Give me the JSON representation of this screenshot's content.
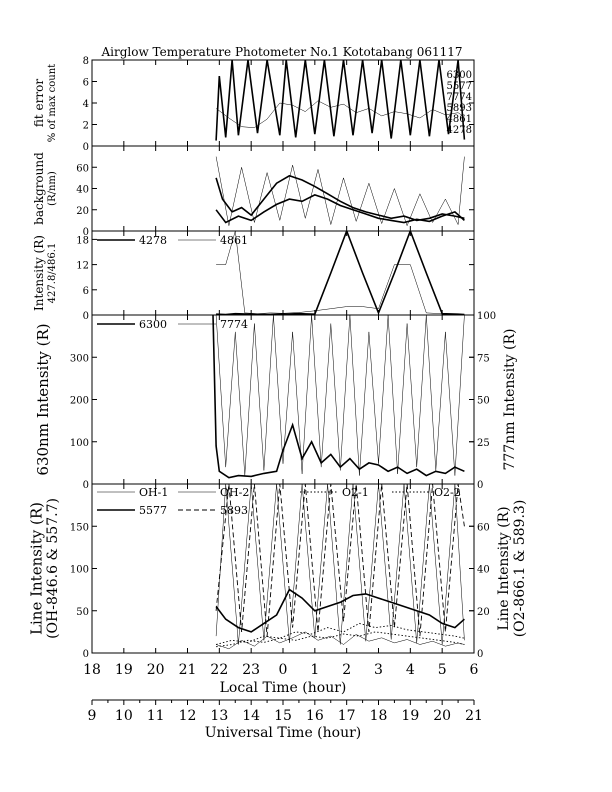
{
  "chart_data": {
    "type": "line",
    "title": "Airglow Temperature Photometer No.1  Kototabang 061117",
    "time_axes": [
      {
        "label": "Local Time (hour)",
        "ticks": [
          "18",
          "19",
          "20",
          "21",
          "22",
          "23",
          "0",
          "1",
          "2",
          "3",
          "4",
          "5",
          "6"
        ],
        "range_hours": [
          18,
          30
        ]
      },
      {
        "label": "Universal Time (hour)",
        "ticks": [
          "9",
          "10",
          "11",
          "12",
          "13",
          "14",
          "15",
          "16",
          "17",
          "18",
          "19",
          "20",
          "21"
        ],
        "range_hours": [
          9,
          21
        ]
      }
    ],
    "panels": [
      {
        "id": "fit-error",
        "ylabel": [
          "fit error",
          "% of max count"
        ],
        "ylim": [
          0,
          8
        ],
        "yticks": [
          "0",
          "2",
          "4",
          "6",
          "8"
        ],
        "side_labels": [
          "6300",
          "5577",
          "7774",
          "5893",
          "4861",
          "4278"
        ],
        "series": [
          {
            "name": "fit error (a)",
            "style": "thick",
            "x": [
              21.9,
              22.0,
              22.2,
              22.4,
              22.6,
              22.9,
              23.2,
              23.5,
              23.9,
              24.1,
              24.4,
              24.7,
              25.0,
              25.3,
              25.6,
              25.9,
              26.2,
              26.5,
              26.8,
              27.1,
              27.4,
              27.7,
              28.0,
              28.3,
              28.6,
              28.9,
              29.2,
              29.5,
              29.7
            ],
            "y": [
              0.5,
              6.5,
              0.8,
              8,
              1.0,
              8,
              1.2,
              8,
              1.0,
              8,
              0.8,
              8,
              1.1,
              8,
              0.9,
              8,
              1.0,
              8,
              1.2,
              8,
              0.7,
              8,
              1.0,
              8,
              0.9,
              8,
              1.1,
              8,
              0.6
            ]
          },
          {
            "name": "fit error (b)",
            "style": "thin",
            "x": [
              21.9,
              22.3,
              22.7,
              23.1,
              23.5,
              23.9,
              24.3,
              24.7,
              25.1,
              25.5,
              25.9,
              26.3,
              26.7,
              27.1,
              27.5,
              27.9,
              28.3,
              28.7,
              29.1,
              29.5,
              29.7
            ],
            "y": [
              3.5,
              2.6,
              1.8,
              1.7,
              2.5,
              4.0,
              3.8,
              3.2,
              4.2,
              3.6,
              3.9,
              3.1,
              3.5,
              2.8,
              3.2,
              3.0,
              2.6,
              3.4,
              2.9,
              3.1,
              2.7
            ]
          }
        ]
      },
      {
        "id": "background",
        "ylabel": [
          "background",
          "(R/nm)"
        ],
        "ylim": [
          0,
          80
        ],
        "yticks": [
          "0",
          "20",
          "40",
          "60"
        ],
        "series": [
          {
            "name": "background (a)",
            "style": "thick",
            "x": [
              21.9,
              22.1,
              22.4,
              22.7,
              23.0,
              23.4,
              23.8,
              24.2,
              24.6,
              25.0,
              25.4,
              25.8,
              26.2,
              26.6,
              27.0,
              27.4,
              27.8,
              28.2,
              28.6,
              29.0,
              29.4,
              29.7
            ],
            "y": [
              50,
              30,
              18,
              22,
              15,
              30,
              45,
              52,
              48,
              42,
              35,
              28,
              22,
              18,
              15,
              12,
              14,
              10,
              12,
              16,
              14,
              12
            ]
          },
          {
            "name": "background (b)",
            "style": "thick",
            "x": [
              21.9,
              22.2,
              22.6,
              23.0,
              23.4,
              23.8,
              24.2,
              24.6,
              25.0,
              25.4,
              25.8,
              26.2,
              26.6,
              27.0,
              27.4,
              27.8,
              28.2,
              28.6,
              29.0,
              29.4,
              29.7
            ],
            "y": [
              20,
              8,
              14,
              10,
              18,
              25,
              30,
              28,
              34,
              30,
              24,
              20,
              16,
              12,
              10,
              8,
              11,
              9,
              14,
              18,
              10
            ]
          },
          {
            "name": "background (c)",
            "style": "thin",
            "x": [
              21.9,
              22.3,
              22.7,
              23.1,
              23.5,
              23.9,
              24.3,
              24.7,
              25.1,
              25.5,
              25.9,
              26.3,
              26.7,
              27.1,
              27.5,
              27.9,
              28.3,
              28.7,
              29.1,
              29.5,
              29.7
            ],
            "y": [
              70,
              5,
              60,
              8,
              55,
              10,
              62,
              12,
              58,
              6,
              50,
              9,
              45,
              7,
              40,
              5,
              35,
              8,
              30,
              6,
              70
            ]
          }
        ]
      },
      {
        "id": "intensity-4278-4861",
        "ylabel": [
          "Intensity (R)",
          "427.8/486.1"
        ],
        "ylim": [
          0,
          20
        ],
        "yticks": [
          "0",
          "6",
          "12",
          "18"
        ],
        "legend": [
          "4278",
          "4861"
        ],
        "series": [
          {
            "name": "4278",
            "style": "thick",
            "x": [
              21.9,
              22.2,
              22.5,
              23.0,
              23.5,
              24.0,
              24.5,
              25.0,
              25.5,
              26.0,
              26.5,
              27.0,
              27.5,
              28.0,
              28.5,
              29.0,
              29.5,
              29.7
            ],
            "y": [
              0.2,
              0.1,
              0.3,
              0.2,
              0.1,
              0.2,
              0.3,
              0.2,
              10,
              20,
              10,
              0.5,
              10,
              20,
              10,
              0.3,
              0.2,
              0.1
            ]
          },
          {
            "name": "4861",
            "style": "thin",
            "x": [
              21.9,
              22.2,
              22.5,
              22.8,
              23.2,
              23.6,
              24.0,
              24.5,
              25.0,
              25.5,
              26.0,
              26.5,
              27.0,
              27.5,
              28.0,
              28.5,
              29.0,
              29.5,
              29.7
            ],
            "y": [
              12,
              12,
              20,
              0.5,
              0.3,
              0.5,
              0.4,
              0.6,
              1.0,
              1.5,
              2.0,
              2.0,
              1.5,
              12,
              12,
              0.5,
              0.3,
              0.2,
              0.1
            ]
          }
        ]
      },
      {
        "id": "intensity-6300-7774",
        "ylabel_left": "630nm Intensity (R)",
        "ylabel_right": "777nm Intensity (R)",
        "ylim_left": [
          0,
          400
        ],
        "ylim_right": [
          0,
          100
        ],
        "yticks_left": [
          "0",
          "100",
          "200",
          "300"
        ],
        "yticks_right": [
          "0",
          "25",
          "50",
          "75",
          "100"
        ],
        "legend": [
          "6300",
          "7774"
        ],
        "series": [
          {
            "name": "6300",
            "style": "thick",
            "axis": "left",
            "x": [
              21.8,
              21.9,
              22.0,
              22.3,
              22.6,
              23.0,
              23.4,
              23.8,
              24.0,
              24.3,
              24.6,
              24.9,
              25.2,
              25.5,
              25.8,
              26.1,
              26.4,
              26.7,
              27.0,
              27.3,
              27.6,
              27.9,
              28.2,
              28.5,
              28.8,
              29.1,
              29.4,
              29.7
            ],
            "y": [
              400,
              90,
              30,
              15,
              20,
              18,
              25,
              30,
              80,
              140,
              60,
              100,
              50,
              70,
              40,
              60,
              35,
              50,
              45,
              30,
              40,
              25,
              35,
              20,
              30,
              25,
              40,
              30
            ]
          },
          {
            "name": "7774",
            "style": "thin",
            "axis": "right",
            "x": [
              21.9,
              22.2,
              22.5,
              22.8,
              23.1,
              23.4,
              23.7,
              24.0,
              24.3,
              24.6,
              24.9,
              25.2,
              25.5,
              25.8,
              26.1,
              26.4,
              26.7,
              27.0,
              27.3,
              27.6,
              27.9,
              28.2,
              28.5,
              28.8,
              29.1,
              29.4,
              29.7
            ],
            "y": [
              100,
              10,
              90,
              5,
              95,
              8,
              100,
              12,
              90,
              6,
              100,
              10,
              95,
              8,
              100,
              5,
              90,
              12,
              100,
              6,
              95,
              10,
              100,
              8,
              90,
              5,
              100
            ]
          }
        ]
      },
      {
        "id": "line-intensity",
        "ylabel_left": [
          "Line Intensity (R)",
          "(OH-846.6 & 557.7)"
        ],
        "ylabel_right": [
          "Line Intensity (R)",
          "(O2-866.1 & 589.3)"
        ],
        "ylim_left": [
          0,
          200
        ],
        "ylim_right": [
          0,
          80
        ],
        "yticks_left": [
          "0",
          "50",
          "100",
          "150"
        ],
        "yticks_right": [
          "0",
          "20",
          "40",
          "60"
        ],
        "legend": [
          "OH-1",
          "OH-2",
          "O2-1",
          "O2-2",
          "5577",
          "5893"
        ],
        "series": [
          {
            "name": "OH-1",
            "style": "thin",
            "axis": "left",
            "x": [
              21.9,
              22.2,
              22.6,
              23.0,
              23.4,
              23.8,
              24.2,
              24.6,
              25.0,
              25.4,
              25.8,
              26.2,
              26.6,
              27.0,
              27.4,
              27.8,
              28.2,
              28.6,
              29.0,
              29.4,
              29.7
            ],
            "y": [
              20,
              200,
              10,
              200,
              15,
              200,
              12,
              200,
              18,
              200,
              10,
              200,
              14,
              200,
              16,
              200,
              12,
              200,
              10,
              200,
              15
            ]
          },
          {
            "name": "OH-2",
            "style": "thin",
            "axis": "left",
            "x": [
              21.9,
              22.3,
              22.7,
              23.1,
              23.5,
              23.9,
              24.3,
              24.7,
              25.1,
              25.5,
              25.9,
              26.3,
              26.7,
              27.1,
              27.5,
              27.9,
              28.3,
              28.7,
              29.1,
              29.5,
              29.7
            ],
            "y": [
              10,
              5,
              15,
              8,
              20,
              12,
              18,
              25,
              15,
              20,
              10,
              22,
              14,
              18,
              12,
              16,
              10,
              14,
              8,
              12,
              10
            ]
          },
          {
            "name": "O2-1",
            "style": "dotted",
            "axis": "right",
            "x": [
              21.9,
              22.4,
              22.9,
              23.4,
              23.9,
              24.4,
              24.9,
              25.4,
              25.9,
              26.4,
              26.9,
              27.4,
              27.9,
              28.4,
              28.9,
              29.4,
              29.7
            ],
            "y": [
              4,
              6,
              5,
              8,
              7,
              10,
              9,
              12,
              10,
              14,
              12,
              13,
              11,
              10,
              9,
              8,
              7
            ]
          },
          {
            "name": "O2-2",
            "style": "dotted",
            "axis": "right",
            "x": [
              21.9,
              22.4,
              22.9,
              23.4,
              23.9,
              24.4,
              24.9,
              25.4,
              25.9,
              26.4,
              26.9,
              27.4,
              27.9,
              28.4,
              28.9,
              29.4,
              29.7
            ],
            "y": [
              3,
              4,
              6,
              5,
              7,
              6,
              8,
              7,
              9,
              8,
              10,
              9,
              8,
              7,
              6,
              5,
              4
            ]
          },
          {
            "name": "5577",
            "style": "thick",
            "axis": "left",
            "x": [
              21.9,
              22.2,
              22.6,
              23.0,
              23.4,
              23.8,
              24.2,
              24.6,
              25.0,
              25.4,
              25.8,
              26.2,
              26.6,
              27.0,
              27.4,
              27.8,
              28.2,
              28.6,
              29.0,
              29.4,
              29.7
            ],
            "y": [
              55,
              40,
              30,
              25,
              35,
              45,
              75,
              65,
              50,
              55,
              60,
              68,
              70,
              65,
              60,
              55,
              50,
              45,
              35,
              30,
              40
            ]
          },
          {
            "name": "5893",
            "style": "dashed",
            "axis": "right",
            "x": [
              21.9,
              22.3,
              22.7,
              23.1,
              23.5,
              23.9,
              24.3,
              24.7,
              25.1,
              25.5,
              25.9,
              26.3,
              26.7,
              27.1,
              27.5,
              27.9,
              28.3,
              28.7,
              29.1,
              29.5,
              29.7
            ],
            "y": [
              20,
              80,
              10,
              80,
              8,
              80,
              12,
              80,
              10,
              80,
              15,
              80,
              10,
              80,
              12,
              80,
              8,
              80,
              10,
              80,
              60
            ]
          }
        ]
      }
    ]
  }
}
